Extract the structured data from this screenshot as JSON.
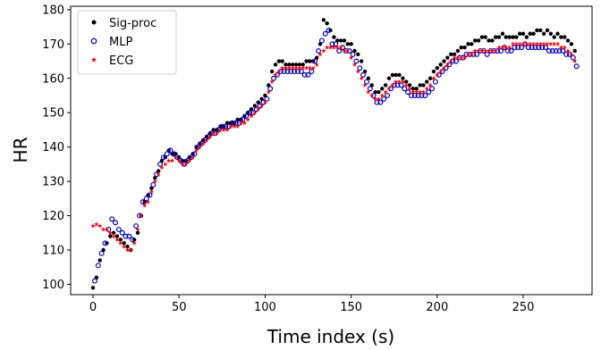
{
  "chart_data": {
    "type": "scatter",
    "title": "",
    "xlabel": "Time index (s)",
    "ylabel": "HR",
    "xlim": [
      -13,
      290
    ],
    "ylim": [
      97,
      181
    ],
    "x_ticks": [
      0,
      50,
      100,
      150,
      200,
      250
    ],
    "y_ticks": [
      100,
      110,
      120,
      130,
      140,
      150,
      160,
      170,
      180
    ],
    "grid": false,
    "legend": "top-left",
    "series": [
      {
        "name": "Sig-proc",
        "marker": "filled-circle",
        "color": "#000000",
        "x": [
          0,
          2,
          4,
          6,
          8,
          10,
          12,
          14,
          16,
          18,
          20,
          22,
          24,
          26,
          28,
          30,
          32,
          34,
          36,
          38,
          40,
          42,
          44,
          46,
          48,
          50,
          52,
          54,
          56,
          58,
          60,
          62,
          64,
          66,
          68,
          70,
          72,
          74,
          76,
          78,
          80,
          82,
          84,
          86,
          88,
          90,
          92,
          94,
          96,
          98,
          100,
          102,
          104,
          106,
          108,
          110,
          112,
          114,
          116,
          118,
          120,
          122,
          124,
          126,
          128,
          130,
          132,
          134,
          136,
          138,
          140,
          142,
          144,
          146,
          148,
          150,
          152,
          154,
          156,
          158,
          160,
          162,
          164,
          166,
          168,
          170,
          172,
          174,
          176,
          178,
          180,
          182,
          184,
          186,
          188,
          190,
          192,
          194,
          196,
          198,
          200,
          202,
          204,
          206,
          208,
          210,
          212,
          214,
          216,
          218,
          220,
          222,
          224,
          226,
          228,
          230,
          232,
          234,
          236,
          238,
          240,
          242,
          244,
          246,
          248,
          250,
          252,
          254,
          256,
          258,
          260,
          262,
          264,
          266,
          268,
          270,
          272,
          274,
          276,
          278,
          280
        ],
        "values": [
          99,
          102,
          107,
          110,
          112,
          114,
          115,
          114,
          113,
          112,
          111,
          110,
          113,
          115,
          120,
          124,
          126,
          128,
          131,
          133,
          136,
          137,
          139,
          138,
          138,
          137,
          136,
          136,
          137,
          138,
          140,
          141,
          142,
          143,
          144,
          145,
          145,
          146,
          146,
          147,
          147,
          147,
          148,
          148,
          149,
          150,
          151,
          152,
          153,
          154,
          155,
          158,
          162,
          164,
          165,
          165,
          164,
          164,
          164,
          164,
          164,
          164,
          165,
          165,
          165,
          166,
          170,
          177,
          176,
          174,
          172,
          171,
          171,
          171,
          170,
          170,
          168,
          167,
          165,
          162,
          160,
          158,
          156,
          156,
          157,
          158,
          160,
          161,
          161,
          161,
          160,
          159,
          158,
          157,
          157,
          158,
          158,
          159,
          160,
          162,
          163,
          164,
          165,
          166,
          167,
          167,
          168,
          169,
          169,
          170,
          170,
          171,
          171,
          172,
          172,
          171,
          171,
          172,
          172,
          173,
          172,
          172,
          172,
          172,
          173,
          173,
          172,
          173,
          173,
          174,
          174,
          173,
          174,
          173,
          172,
          173,
          172,
          172,
          171,
          170,
          168
        ]
      },
      {
        "name": "MLP",
        "marker": "open-circle",
        "color": "#0000cc",
        "x": [
          1,
          3,
          5,
          7,
          9,
          11,
          13,
          15,
          17,
          19,
          21,
          23,
          25,
          27,
          29,
          31,
          33,
          35,
          37,
          39,
          41,
          43,
          45,
          47,
          49,
          51,
          53,
          55,
          57,
          59,
          61,
          63,
          65,
          67,
          69,
          71,
          73,
          75,
          77,
          79,
          81,
          83,
          85,
          87,
          89,
          91,
          93,
          95,
          97,
          99,
          101,
          103,
          105,
          107,
          109,
          111,
          113,
          115,
          117,
          119,
          121,
          123,
          125,
          127,
          129,
          131,
          133,
          135,
          137,
          139,
          141,
          143,
          145,
          147,
          149,
          151,
          153,
          155,
          157,
          159,
          161,
          163,
          165,
          167,
          169,
          171,
          173,
          175,
          177,
          179,
          181,
          183,
          185,
          187,
          189,
          191,
          193,
          195,
          197,
          199,
          201,
          203,
          205,
          207,
          209,
          211,
          213,
          215,
          217,
          219,
          221,
          223,
          225,
          227,
          229,
          231,
          233,
          235,
          237,
          239,
          241,
          243,
          245,
          247,
          249,
          251,
          253,
          255,
          257,
          259,
          261,
          263,
          265,
          267,
          269,
          271,
          273,
          275,
          277,
          279,
          281
        ],
        "values": [
          101,
          105.5,
          109,
          112,
          116,
          119,
          118,
          116,
          115,
          114,
          114,
          113,
          117,
          120,
          124,
          125,
          126,
          129,
          132,
          135,
          137,
          138,
          139,
          138,
          137,
          136,
          135,
          136,
          137,
          138,
          140,
          141,
          142,
          143,
          144,
          144,
          145,
          146,
          146,
          146,
          147,
          147,
          147,
          148,
          149,
          150,
          150,
          151,
          152,
          153,
          154,
          157,
          160,
          161,
          162,
          162,
          162,
          162,
          162,
          162,
          162,
          161,
          161,
          162,
          165,
          168,
          171,
          173,
          174,
          170,
          170,
          168,
          169,
          168,
          168,
          167,
          165,
          163,
          161,
          159,
          157,
          155,
          153,
          153,
          154,
          155,
          157,
          158,
          158,
          158,
          157,
          156,
          155,
          155,
          155,
          155,
          155,
          156,
          157,
          159,
          161,
          162,
          163,
          164,
          165,
          165,
          166,
          166,
          167,
          167,
          167,
          167,
          168,
          168,
          167,
          168,
          168,
          168,
          168,
          169,
          168,
          168,
          169,
          169,
          169,
          170,
          169,
          169,
          169,
          169,
          169,
          169,
          168,
          168,
          168,
          168,
          168,
          167,
          167,
          166,
          163.5
        ]
      },
      {
        "name": "ECG",
        "marker": "star",
        "color": "#ff0000",
        "x": [
          0,
          2,
          4,
          6,
          8,
          10,
          12,
          14,
          16,
          18,
          20,
          22,
          24,
          26,
          28,
          30,
          32,
          34,
          36,
          38,
          40,
          42,
          44,
          46,
          48,
          50,
          52,
          54,
          56,
          58,
          60,
          62,
          64,
          66,
          68,
          70,
          72,
          74,
          76,
          78,
          80,
          82,
          84,
          86,
          88,
          90,
          92,
          94,
          96,
          98,
          100,
          102,
          104,
          106,
          108,
          110,
          112,
          114,
          116,
          118,
          120,
          122,
          124,
          126,
          128,
          130,
          132,
          134,
          136,
          138,
          140,
          142,
          144,
          146,
          148,
          150,
          152,
          154,
          156,
          158,
          160,
          162,
          164,
          166,
          168,
          170,
          172,
          174,
          176,
          178,
          180,
          182,
          184,
          186,
          188,
          190,
          192,
          194,
          196,
          198,
          200,
          202,
          204,
          206,
          208,
          210,
          212,
          214,
          216,
          218,
          220,
          222,
          224,
          226,
          228,
          230,
          232,
          234,
          236,
          238,
          240,
          242,
          244,
          246,
          248,
          250,
          252,
          254,
          256,
          258,
          260,
          262,
          264,
          266,
          268,
          270,
          272,
          274,
          276,
          278,
          280
        ],
        "values": [
          117,
          117.5,
          117,
          116,
          116,
          115,
          114,
          113,
          112,
          111,
          110,
          110,
          112,
          116,
          120,
          123,
          124,
          127,
          130,
          132,
          134,
          135,
          136,
          136,
          137,
          136,
          135,
          135,
          136,
          137,
          139,
          140,
          141,
          142,
          143,
          144,
          144,
          145,
          145,
          145,
          146,
          146,
          146,
          147,
          147,
          148,
          149,
          150,
          151,
          152,
          153,
          156,
          159,
          161,
          162,
          163,
          163,
          163,
          163,
          163,
          163,
          163,
          163,
          163,
          163,
          164,
          167,
          168,
          169,
          169,
          169,
          169,
          169,
          168,
          168,
          166,
          164,
          162,
          160,
          158,
          156,
          155,
          154,
          154,
          155,
          156,
          157,
          158,
          159,
          159,
          159,
          158,
          157,
          156,
          156,
          156,
          156,
          157,
          158,
          160,
          161,
          162,
          163,
          164,
          165,
          166,
          166,
          166,
          166,
          167,
          167,
          168,
          168,
          168,
          168,
          168,
          168,
          168,
          169,
          169,
          169,
          169,
          170,
          170,
          170,
          170,
          170,
          170,
          170,
          170,
          170,
          170,
          170,
          170,
          170,
          170,
          169,
          169,
          168,
          167,
          165
        ]
      }
    ]
  }
}
